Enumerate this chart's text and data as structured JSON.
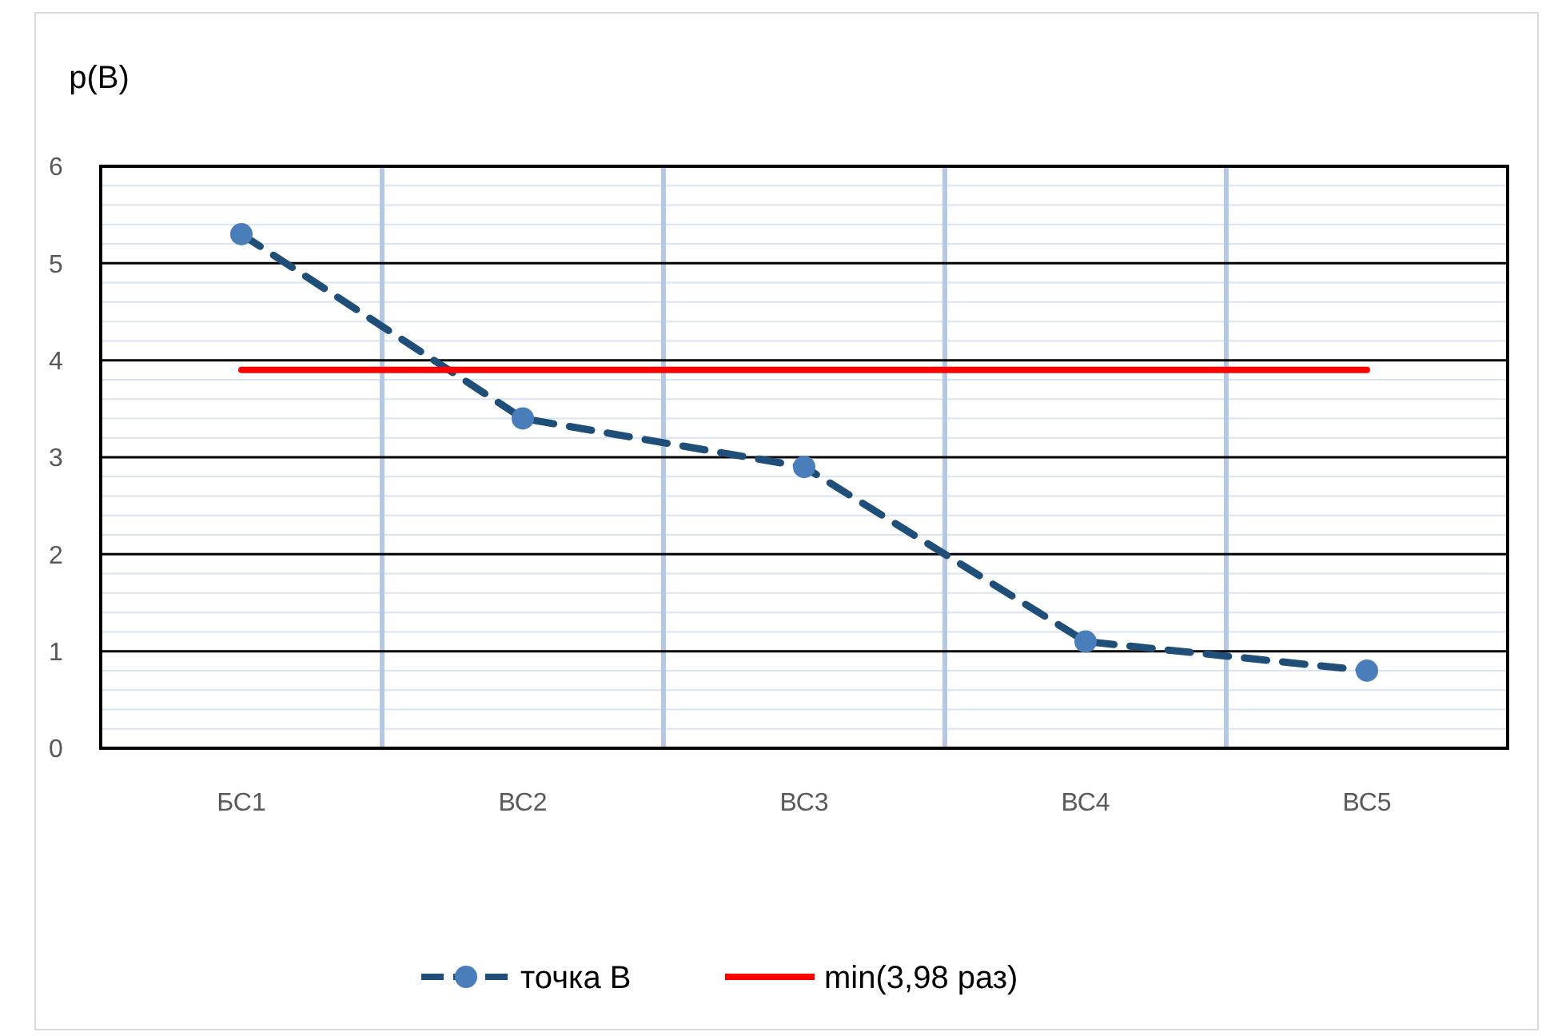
{
  "chart_data": {
    "type": "line",
    "ylabel": "p(B)",
    "categories": [
      "БС1",
      "ВС2",
      "ВС3",
      "ВС4",
      "ВС5"
    ],
    "series": [
      {
        "name": "точка B",
        "color": "#1f4e79",
        "values": [
          5.3,
          3.4,
          2.9,
          1.1,
          0.8
        ],
        "marker": "circle",
        "line_style": "dashed"
      },
      {
        "name": "min(3,98 раз)",
        "color": "#ff0000",
        "values": [
          3.9,
          3.9,
          3.9,
          3.9,
          3.9
        ],
        "marker": "none",
        "line_style": "solid"
      }
    ],
    "ylim": [
      0,
      6
    ],
    "yticks": [
      0,
      1,
      2,
      3,
      4,
      5,
      6
    ],
    "grid": true,
    "legend": "bottom"
  }
}
